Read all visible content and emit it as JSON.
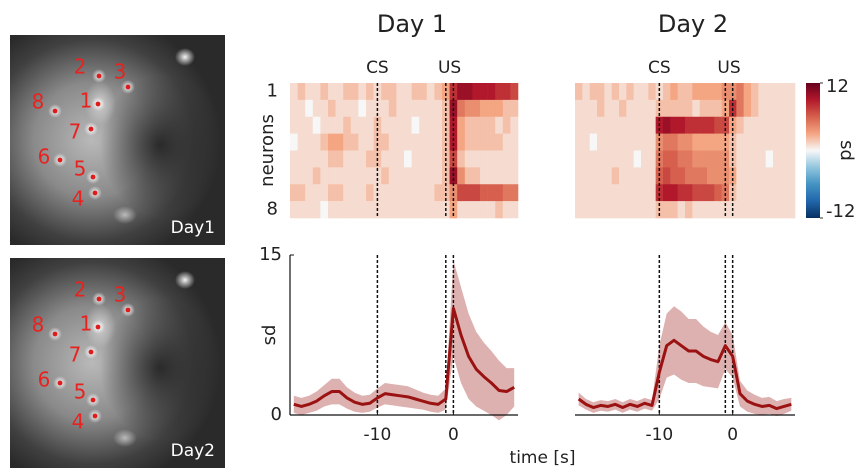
{
  "images": [
    {
      "label": "Day1",
      "neurons": [
        "1",
        "2",
        "3",
        "4",
        "5",
        "6",
        "7",
        "8"
      ]
    },
    {
      "label": "Day2",
      "neurons": [
        "1",
        "2",
        "3",
        "4",
        "5",
        "6",
        "7",
        "8"
      ]
    }
  ],
  "chart_data": [
    {
      "type": "heatmap",
      "title": "Day 1",
      "ylabel": "neurons",
      "x": [
        -21,
        -20,
        -19,
        -18,
        -17,
        -16,
        -15,
        -14,
        -13,
        -12,
        -11,
        -10,
        -9,
        -8,
        -7,
        -6,
        -5,
        -4,
        -3,
        -2,
        -1,
        0,
        1,
        2,
        3,
        4,
        5,
        6,
        7,
        8
      ],
      "xlim": [
        -21.5,
        8.5
      ],
      "rows": [
        "1",
        null,
        null,
        null,
        null,
        null,
        null,
        "8"
      ],
      "events": [
        {
          "label": "CS",
          "x": [
            -10
          ]
        },
        {
          "label": "US",
          "x": [
            -1,
            0
          ]
        }
      ],
      "values": [
        [
          1,
          2,
          1,
          1,
          2,
          1,
          1,
          2,
          2,
          1,
          2,
          1,
          2,
          2,
          1,
          1,
          2,
          2,
          1,
          2,
          3,
          8,
          10,
          10,
          9,
          9,
          9,
          8,
          8,
          7
        ],
        [
          1,
          1,
          0,
          1,
          1,
          2,
          1,
          1,
          1,
          0,
          1,
          1,
          1,
          2,
          1,
          1,
          1,
          1,
          1,
          1,
          2,
          10,
          5,
          4,
          4,
          3,
          3,
          3,
          2,
          2
        ],
        [
          1,
          1,
          1,
          0,
          1,
          1,
          1,
          2,
          1,
          1,
          1,
          2,
          1,
          1,
          1,
          1,
          0,
          1,
          1,
          1,
          2,
          9,
          3,
          2,
          2,
          2,
          2,
          1,
          2,
          1
        ],
        [
          0,
          1,
          1,
          1,
          2,
          3,
          3,
          2,
          2,
          1,
          1,
          2,
          2,
          1,
          1,
          1,
          1,
          1,
          1,
          1,
          2,
          9,
          3,
          2,
          2,
          2,
          2,
          2,
          1,
          1
        ],
        [
          1,
          1,
          1,
          1,
          1,
          2,
          2,
          1,
          1,
          1,
          2,
          2,
          1,
          1,
          1,
          0,
          1,
          1,
          1,
          1,
          2,
          7,
          2,
          1,
          1,
          1,
          1,
          1,
          1,
          1
        ],
        [
          1,
          1,
          1,
          2,
          1,
          1,
          1,
          1,
          1,
          1,
          1,
          1,
          2,
          1,
          1,
          1,
          1,
          1,
          1,
          1,
          2,
          10,
          4,
          2,
          2,
          1,
          1,
          1,
          1,
          1
        ],
        [
          2,
          2,
          1,
          1,
          1,
          2,
          2,
          1,
          1,
          1,
          2,
          1,
          1,
          1,
          1,
          1,
          1,
          1,
          1,
          2,
          2,
          4,
          7,
          7,
          7,
          6,
          6,
          6,
          5,
          5
        ],
        [
          1,
          1,
          1,
          1,
          0,
          1,
          1,
          1,
          1,
          1,
          1,
          1,
          1,
          1,
          1,
          1,
          1,
          1,
          1,
          1,
          1,
          3,
          1,
          1,
          1,
          1,
          1,
          2,
          1,
          1
        ]
      ]
    },
    {
      "type": "heatmap",
      "title": "Day 2",
      "x": [
        -21,
        -20,
        -19,
        -18,
        -17,
        -16,
        -15,
        -14,
        -13,
        -12,
        -11,
        -10,
        -9,
        -8,
        -7,
        -6,
        -5,
        -4,
        -3,
        -2,
        -1,
        0,
        1,
        2,
        3,
        4,
        5,
        6,
        7,
        8
      ],
      "xlim": [
        -21.5,
        8.5
      ],
      "events": [
        {
          "label": "CS",
          "x": [
            -10
          ]
        },
        {
          "label": "US",
          "x": [
            -1,
            0
          ]
        }
      ],
      "values": [
        [
          2,
          1,
          2,
          2,
          1,
          2,
          1,
          2,
          1,
          1,
          2,
          1,
          2,
          3,
          2,
          2,
          3,
          3,
          3,
          3,
          4,
          4,
          5,
          3,
          2,
          1,
          1,
          1,
          1,
          1
        ],
        [
          1,
          1,
          1,
          2,
          1,
          1,
          2,
          1,
          1,
          1,
          1,
          2,
          2,
          2,
          2,
          2,
          1,
          2,
          2,
          2,
          3,
          8,
          5,
          3,
          2,
          1,
          1,
          1,
          1,
          1
        ],
        [
          1,
          1,
          1,
          1,
          1,
          1,
          1,
          1,
          1,
          1,
          1,
          9,
          10,
          9,
          9,
          8,
          8,
          8,
          8,
          7,
          7,
          3,
          2,
          1,
          1,
          1,
          1,
          1,
          1,
          1
        ],
        [
          1,
          1,
          0,
          1,
          1,
          1,
          1,
          1,
          1,
          1,
          1,
          4,
          5,
          5,
          4,
          4,
          3,
          3,
          3,
          3,
          3,
          2,
          1,
          1,
          1,
          1,
          1,
          1,
          1,
          1
        ],
        [
          1,
          1,
          1,
          1,
          1,
          1,
          1,
          1,
          0,
          1,
          1,
          5,
          6,
          6,
          5,
          5,
          4,
          4,
          4,
          4,
          4,
          2,
          1,
          1,
          1,
          1,
          0,
          1,
          1,
          1
        ],
        [
          1,
          1,
          1,
          1,
          1,
          2,
          1,
          1,
          1,
          1,
          1,
          6,
          7,
          6,
          6,
          5,
          5,
          5,
          4,
          4,
          4,
          3,
          1,
          1,
          1,
          1,
          1,
          1,
          1,
          1
        ],
        [
          1,
          1,
          1,
          1,
          1,
          1,
          1,
          1,
          1,
          1,
          1,
          8,
          9,
          9,
          8,
          8,
          7,
          7,
          7,
          6,
          5,
          2,
          1,
          1,
          1,
          1,
          1,
          1,
          1,
          1
        ],
        [
          1,
          1,
          1,
          1,
          1,
          1,
          1,
          1,
          1,
          1,
          1,
          2,
          2,
          2,
          1,
          2,
          1,
          1,
          1,
          1,
          1,
          1,
          1,
          1,
          1,
          1,
          1,
          1,
          1,
          1
        ]
      ]
    },
    {
      "type": "colorbar",
      "label": "sd",
      "clim": [
        -12,
        12
      ],
      "cticks": [
        -12,
        12
      ],
      "colors": [
        "#053061",
        "#2166ac",
        "#4393c3",
        "#92c5de",
        "#f7f7f7",
        "#f4a582",
        "#d6604d",
        "#b2182b",
        "#67001f"
      ]
    },
    {
      "type": "line",
      "ylabel": "sd",
      "xlabel": "time [s]",
      "x": [
        -21,
        -20,
        -19,
        -18,
        -17,
        -16,
        -15,
        -14,
        -13,
        -12,
        -11,
        -10,
        -9,
        -8,
        -7,
        -6,
        -5,
        -4,
        -3,
        -2,
        -1,
        0,
        1,
        2,
        3,
        4,
        5,
        6,
        7,
        8
      ],
      "xlim": [
        -21.5,
        8.5
      ],
      "ylim": [
        0,
        15
      ],
      "yticks": [
        0,
        15
      ],
      "xticks": [
        -10,
        0
      ],
      "vlines": [
        -10,
        -1,
        0
      ],
      "series": [
        {
          "color": "#9b1212",
          "band_color": "#d8a3a3",
          "values": [
            1.0,
            0.8,
            1.0,
            1.3,
            1.8,
            2.2,
            2.2,
            1.6,
            1.2,
            1.0,
            1.1,
            1.6,
            2.0,
            1.9,
            1.8,
            1.7,
            1.5,
            1.3,
            1.1,
            1.0,
            1.5,
            10.0,
            7.5,
            5.5,
            4.3,
            3.6,
            3.0,
            2.3,
            2.2,
            2.6
          ],
          "error": [
            0.8,
            0.8,
            0.8,
            0.9,
            1.0,
            1.2,
            1.2,
            1.0,
            0.9,
            0.8,
            0.8,
            0.9,
            1.0,
            1.0,
            1.0,
            1.0,
            0.9,
            0.8,
            0.8,
            0.8,
            1.0,
            4.5,
            4.5,
            4.0,
            3.5,
            3.2,
            3.0,
            2.8,
            2.2,
            1.8
          ]
        }
      ]
    },
    {
      "type": "line",
      "x": [
        -21,
        -20,
        -19,
        -18,
        -17,
        -16,
        -15,
        -14,
        -13,
        -12,
        -11,
        -10,
        -9,
        -8,
        -7,
        -6,
        -5,
        -4,
        -3,
        -2,
        -1,
        0,
        1,
        2,
        3,
        4,
        5,
        6,
        7,
        8
      ],
      "xlim": [
        -21.5,
        8.5
      ],
      "ylim": [
        0,
        15
      ],
      "xticks": [
        -10,
        0
      ],
      "vlines": [
        -10,
        -1,
        0
      ],
      "series": [
        {
          "color": "#9b1212",
          "band_color": "#d8a3a3",
          "values": [
            1.5,
            1.0,
            0.7,
            0.9,
            0.8,
            1.0,
            0.7,
            1.0,
            0.8,
            1.1,
            0.9,
            4.0,
            6.5,
            7.0,
            6.5,
            6.0,
            6.0,
            5.5,
            5.2,
            5.0,
            6.5,
            5.5,
            2.0,
            1.3,
            1.0,
            0.8,
            0.9,
            0.6,
            0.8,
            1.0
          ],
          "error": [
            0.6,
            0.5,
            0.5,
            0.5,
            0.5,
            0.5,
            0.5,
            0.5,
            0.5,
            0.5,
            0.5,
            2.5,
            3.0,
            3.2,
            3.2,
            3.0,
            3.0,
            2.8,
            2.6,
            2.5,
            2.2,
            2.0,
            1.2,
            1.0,
            0.9,
            0.8,
            0.8,
            0.7,
            0.7,
            0.6
          ]
        }
      ]
    }
  ]
}
